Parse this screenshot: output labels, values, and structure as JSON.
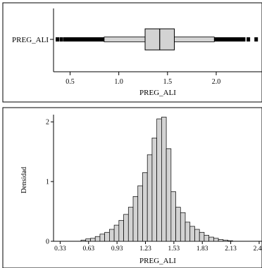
{
  "chart_data": [
    {
      "type": "boxplot",
      "ylabel_category": "PREG_ALI",
      "xlabel": "PREG_ALI",
      "xlim": [
        0.33,
        2.47
      ],
      "xticks": [
        "0.5",
        "1.0",
        "1.5",
        "2.0"
      ],
      "xtick_values": [
        0.5,
        1.0,
        1.5,
        2.0
      ],
      "stats": {
        "whisker_low": 0.85,
        "q1": 1.27,
        "median": 1.42,
        "q3": 1.57,
        "whisker_high": 1.98
      },
      "outliers_low_dense_range": [
        0.43,
        0.85
      ],
      "outliers_low_sparse": [
        0.37,
        0.41
      ],
      "outliers_high_dense_range": [
        1.98,
        2.3
      ],
      "outliers_high_sparse": [
        2.33,
        2.41
      ]
    },
    {
      "type": "bar",
      "ylabel": "Densidad",
      "xlabel": "PREG_ALI",
      "xlim": [
        0.26,
        2.46
      ],
      "ylim": [
        0,
        2.05
      ],
      "xticks": [
        "0.33",
        "0.63",
        "0.93",
        "1.23",
        "1.53",
        "1.83",
        "2.13",
        "2.43"
      ],
      "xtick_values": [
        0.33,
        0.63,
        0.93,
        1.23,
        1.53,
        1.83,
        2.13,
        2.43
      ],
      "yticks": [
        "0",
        "1",
        "2"
      ],
      "ytick_values": [
        0,
        1,
        2
      ],
      "bin_start": 0.55,
      "bin_width": 0.05,
      "values": [
        0.02,
        0.04,
        0.05,
        0.08,
        0.12,
        0.15,
        0.2,
        0.27,
        0.35,
        0.45,
        0.57,
        0.75,
        0.93,
        1.15,
        1.45,
        1.73,
        2.05,
        2.08,
        1.55,
        0.83,
        0.57,
        0.48,
        0.32,
        0.25,
        0.2,
        0.15,
        0.1,
        0.07,
        0.05,
        0.03,
        0.02,
        0.01
      ]
    }
  ]
}
